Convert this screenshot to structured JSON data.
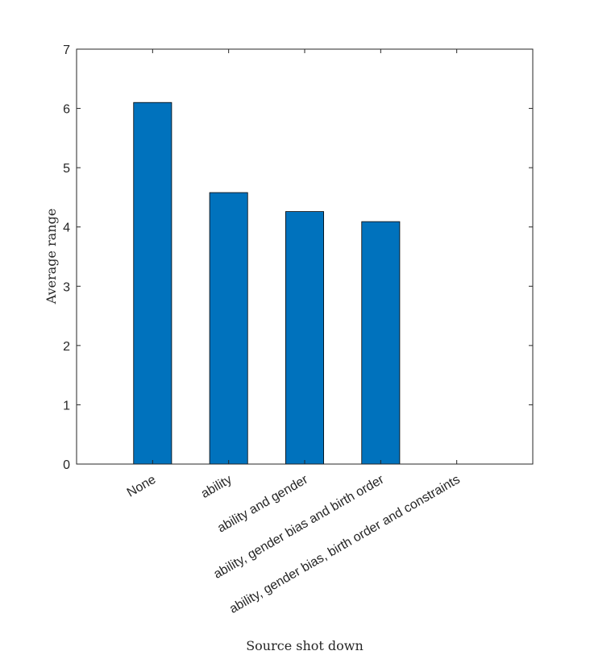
{
  "chart_data": {
    "type": "bar",
    "categories": [
      "None",
      "ability",
      "ability and gender",
      "ability, gender bias and birth order",
      "ability, gender bias, birth order and constraints"
    ],
    "values": [
      6.1,
      4.58,
      4.26,
      4.09,
      0
    ],
    "xlabel": "Source shot down",
    "ylabel": "Average range",
    "ylim": [
      0,
      7
    ],
    "yticks": [
      "0",
      "1",
      "2",
      "3",
      "4",
      "5",
      "6",
      "7"
    ],
    "bar_color": "#0072BD",
    "grid": false,
    "legend": "none"
  }
}
